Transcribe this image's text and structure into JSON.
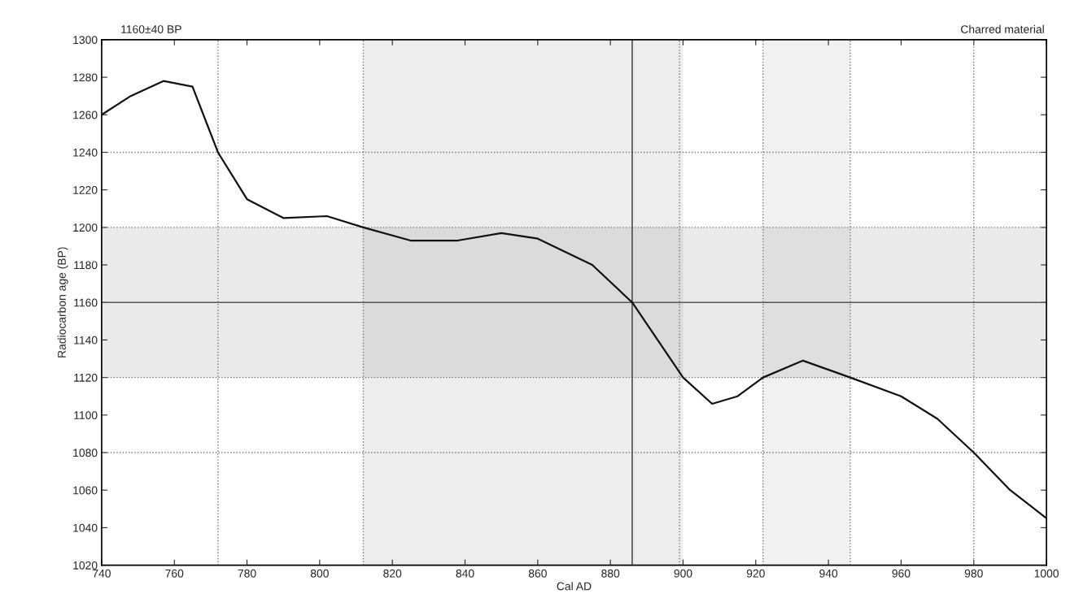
{
  "chart_data": {
    "type": "line",
    "xlabel": "Cal AD",
    "ylabel": "Radiocarbon age (BP)",
    "annotations": [
      "1160±40 BP",
      "Charred material"
    ],
    "x": [
      740,
      748,
      757,
      765,
      772,
      780,
      790,
      802,
      812,
      825,
      838,
      850,
      860,
      875,
      886,
      900,
      908,
      915,
      922,
      933,
      946,
      960,
      970,
      980,
      990,
      1000
    ],
    "series": [
      {
        "color": "#111111",
        "values": [
          1260,
          1270,
          1278,
          1275,
          1240,
          1215,
          1205,
          1206,
          1200,
          1193,
          1193,
          1197,
          1194,
          1180,
          1160,
          1120,
          1106,
          1110,
          1120,
          1129,
          1120,
          1110,
          1098,
          1080,
          1060,
          1045
        ]
      }
    ],
    "xlim": [
      740,
      1000
    ],
    "ylim": [
      1020,
      1300
    ],
    "xticks": [
      740,
      760,
      780,
      800,
      820,
      840,
      860,
      880,
      900,
      920,
      940,
      960,
      980,
      1000
    ],
    "yticks": [
      1020,
      1040,
      1060,
      1080,
      1100,
      1120,
      1140,
      1160,
      1180,
      1200,
      1220,
      1240,
      1260,
      1280,
      1300
    ],
    "grid": false,
    "marker": "none",
    "line_style": "solid",
    "ref_lines": [
      {
        "axis": "y",
        "value": 1160,
        "color": "#555555",
        "line_style": "solid"
      },
      {
        "axis": "y",
        "value": 1240,
        "color": "#777777",
        "line_style": "dotted"
      },
      {
        "axis": "y",
        "value": 1200,
        "color": "#777777",
        "line_style": "dotted"
      },
      {
        "axis": "y",
        "value": 1120,
        "color": "#777777",
        "line_style": "dotted"
      },
      {
        "axis": "y",
        "value": 1080,
        "color": "#777777",
        "line_style": "dotted"
      },
      {
        "axis": "x",
        "value": 772,
        "color": "#777777",
        "line_style": "dotted"
      },
      {
        "axis": "x",
        "value": 812,
        "color": "#777777",
        "line_style": "dotted"
      },
      {
        "axis": "x",
        "value": 886,
        "color": "#333333",
        "line_style": "solid"
      },
      {
        "axis": "x",
        "value": 899,
        "color": "#777777",
        "line_style": "dotted"
      },
      {
        "axis": "x",
        "value": 922,
        "color": "#777777",
        "line_style": "dotted"
      },
      {
        "axis": "x",
        "value": 946,
        "color": "#777777",
        "line_style": "dotted"
      },
      {
        "axis": "x",
        "value": 980,
        "color": "#777777",
        "line_style": "dotted"
      }
    ],
    "bands": [
      {
        "axis": "y",
        "from": 1120,
        "to": 1200,
        "color": "#8a8a8a"
      },
      {
        "axis": "x",
        "from": 812,
        "to": 900,
        "color": "#9a9a9a"
      },
      {
        "axis": "x",
        "from": 922,
        "to": 946,
        "color": "#b0b0b0"
      }
    ]
  }
}
